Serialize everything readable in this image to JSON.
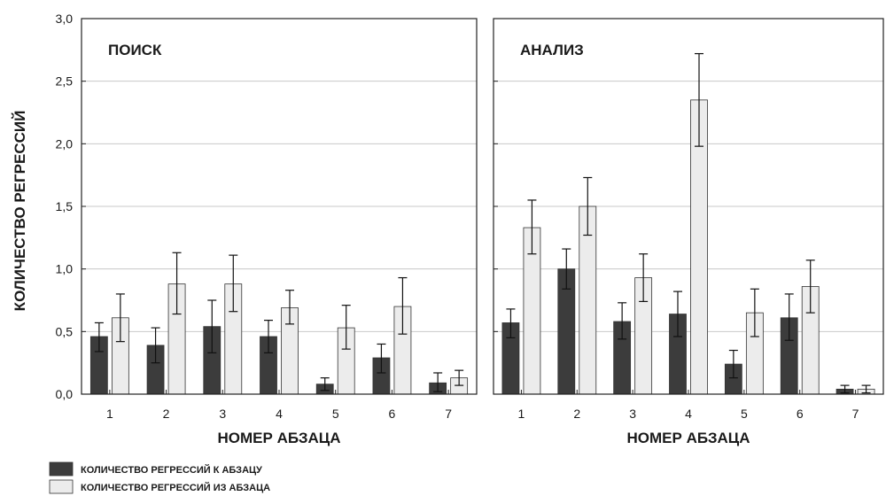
{
  "chart_data": {
    "type": "bar",
    "ylabel": "КОЛИЧЕСТВО РЕГРЕССИЙ",
    "xlabel": "НОМЕР АБЗАЦА",
    "ylim": [
      0,
      3
    ],
    "y_ticks": [
      "0,0",
      "0,5",
      "1,0",
      "1,5",
      "2,0",
      "2,5",
      "3,0"
    ],
    "grid": "horizontal",
    "legend_position": "bottom-left",
    "colors": {
      "to": "#3c3c3c",
      "from": "#ececec"
    },
    "series_legend": [
      {
        "key": "to",
        "label": "КОЛИЧЕСТВО РЕГРЕССИЙ К АБЗАЦУ"
      },
      {
        "key": "from",
        "label": "КОЛИЧЕСТВО РЕГРЕССИЙ ИЗ АБЗАЦА"
      }
    ],
    "panels": [
      {
        "title": "ПОИСК",
        "xlabel": "НОМЕР АБЗАЦА",
        "categories": [
          "1",
          "2",
          "3",
          "4",
          "5",
          "6",
          "7"
        ],
        "series": [
          {
            "key": "to",
            "values": [
              0.46,
              0.39,
              0.54,
              0.46,
              0.08,
              0.29,
              0.09
            ],
            "err_low": [
              0.34,
              0.25,
              0.33,
              0.33,
              0.03,
              0.17,
              0.02
            ],
            "err_high": [
              0.57,
              0.53,
              0.75,
              0.59,
              0.13,
              0.4,
              0.17
            ]
          },
          {
            "key": "from",
            "values": [
              0.61,
              0.88,
              0.88,
              0.69,
              0.53,
              0.7,
              0.13
            ],
            "err_low": [
              0.42,
              0.64,
              0.66,
              0.56,
              0.36,
              0.48,
              0.07
            ],
            "err_high": [
              0.8,
              1.13,
              1.11,
              0.83,
              0.71,
              0.93,
              0.19
            ]
          }
        ]
      },
      {
        "title": "АНАЛИЗ",
        "xlabel": "НОМЕР АБЗАЦА",
        "categories": [
          "1",
          "2",
          "3",
          "4",
          "5",
          "6",
          "7"
        ],
        "series": [
          {
            "key": "to",
            "values": [
              0.57,
              1.0,
              0.58,
              0.64,
              0.24,
              0.61,
              0.04
            ],
            "err_low": [
              0.45,
              0.84,
              0.44,
              0.46,
              0.13,
              0.43,
              0.01
            ],
            "err_high": [
              0.68,
              1.16,
              0.73,
              0.82,
              0.35,
              0.8,
              0.07
            ]
          },
          {
            "key": "from",
            "values": [
              1.33,
              1.5,
              0.93,
              2.35,
              0.65,
              0.86,
              0.04
            ],
            "err_low": [
              1.12,
              1.27,
              0.74,
              1.98,
              0.46,
              0.65,
              0.01
            ],
            "err_high": [
              1.55,
              1.73,
              1.12,
              2.72,
              0.84,
              1.07,
              0.07
            ]
          }
        ]
      }
    ]
  }
}
